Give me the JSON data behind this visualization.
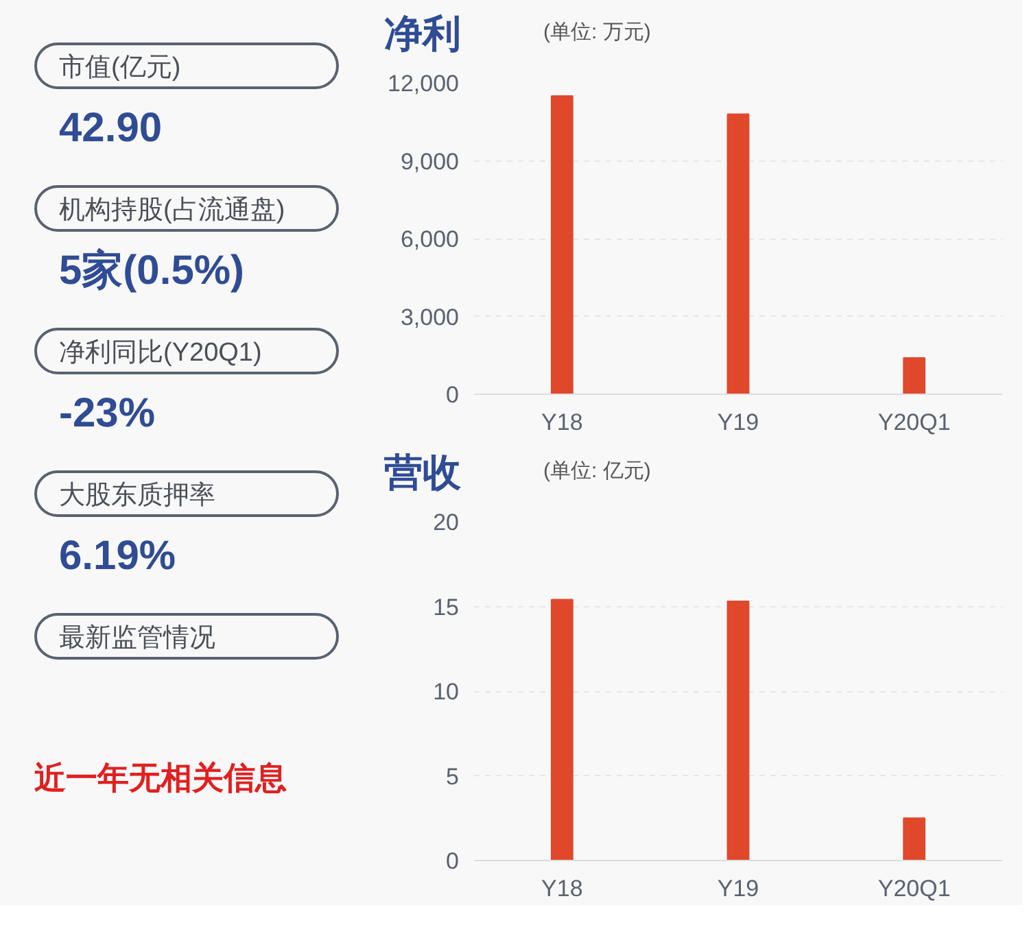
{
  "chart_data": [
    {
      "type": "other",
      "annotations": [
        "市值(亿元)",
        "42.90",
        "机构持股(占流通盘)",
        "5家(0.5%)",
        "净利同比(Y20Q1)",
        "-23%",
        "大股东质押率",
        "6.19%",
        "最新监管情况",
        "近一年无相关信息"
      ]
    },
    {
      "type": "bar",
      "title": "净利",
      "subtitle": "(单位: 万元)",
      "categories": [
        "Y18",
        "Y19",
        "Y20Q1"
      ],
      "values": [
        11500,
        10800,
        1400
      ],
      "color": "#e0482c",
      "ylim": [
        0,
        12000
      ],
      "yticks": [
        0,
        {
          "value": 3000,
          "label": "3,000"
        },
        {
          "value": 6000,
          "label": "6,000"
        },
        {
          "value": 9000,
          "label": "9,000"
        },
        {
          "value": 12000,
          "label": "12,000"
        }
      ],
      "grid": "y"
    },
    {
      "type": "bar",
      "title": "营收",
      "subtitle": "(单位: 亿元)",
      "categories": [
        "Y18",
        "Y19",
        "Y20Q1"
      ],
      "values": [
        15.4,
        15.3,
        2.5
      ],
      "color": "#e0482c",
      "ylim": [
        0,
        20
      ],
      "yticks": [
        0,
        5,
        10,
        15,
        20
      ],
      "grid": "y"
    }
  ]
}
